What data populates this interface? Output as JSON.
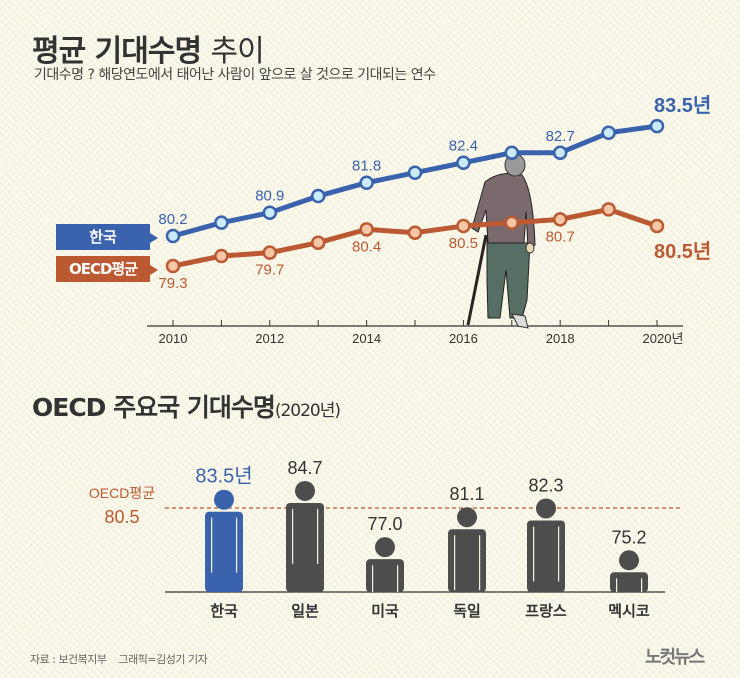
{
  "header": {
    "title_bold": "평균 기대수명",
    "title_light": "추이",
    "subtitle": "기대수명 ? 해당연도에서 태어난 사람이 앞으로 살 것으로 기대되는 연수"
  },
  "line_chart": {
    "legend": {
      "korea": "한국",
      "oecd": "OECD평균"
    },
    "end_labels": {
      "korea": "83.5년",
      "oecd": "80.5년"
    },
    "x_ticks": [
      "2010",
      "2012",
      "2014",
      "2016",
      "2018",
      "2020년"
    ]
  },
  "bar_chart": {
    "title_bold": "OECD 주요국 기대수명",
    "title_light": "(2020년)",
    "oecd_label": "OECD평균",
    "oecd_value": "80.5"
  },
  "footer": {
    "source": "자료 : 보건복지부    그래픽=김성기 기자",
    "logo": "노컷뉴스"
  },
  "colors": {
    "korea": "#3a62ad",
    "oecd": "#bb5a32",
    "korea_point_fill": "#c9ecf8",
    "oecd_point_fill": "#f6c7a6",
    "figure_gray": "#4d4d4d",
    "background": "#fbf9ec"
  },
  "chart_data": [
    {
      "type": "line",
      "title": "평균 기대수명 추이",
      "subtitle": "기대수명 ? 해당연도에서 태어난 사람이 앞으로 살 것으로 기대되는 연수",
      "x": [
        2010,
        2011,
        2012,
        2013,
        2014,
        2015,
        2016,
        2017,
        2018,
        2019,
        2020
      ],
      "series": [
        {
          "name": "한국",
          "values": [
            80.2,
            80.6,
            80.9,
            81.4,
            81.8,
            82.1,
            82.4,
            82.7,
            82.7,
            83.3,
            83.5
          ],
          "labeled": {
            "2010": "80.2",
            "2012": "80.9",
            "2014": "81.8",
            "2016": "82.4",
            "2018": "82.7",
            "2020": "83.5년"
          }
        },
        {
          "name": "OECD평균",
          "values": [
            79.3,
            79.6,
            79.7,
            80.0,
            80.4,
            80.3,
            80.5,
            80.6,
            80.7,
            81.0,
            80.5
          ],
          "labeled": {
            "2010": "79.3",
            "2012": "79.7",
            "2014": "80.4",
            "2016": "80.5",
            "2018": "80.7",
            "2020": "80.5년"
          }
        }
      ],
      "x_tick_labels": [
        "2010",
        "2012",
        "2014",
        "2016",
        "2018",
        "2020년"
      ],
      "xlabel": "",
      "ylabel": "",
      "grid": false,
      "legend_position": "left"
    },
    {
      "type": "bar",
      "title": "OECD 주요국 기대수명(2020년)",
      "categories": [
        "한국",
        "일본",
        "미국",
        "독일",
        "프랑스",
        "멕시코"
      ],
      "values": [
        83.5,
        84.7,
        77.0,
        81.1,
        82.3,
        75.2
      ],
      "value_labels": [
        "83.5년",
        "84.7",
        "77.0",
        "81.1",
        "82.3",
        "75.2"
      ],
      "reference_line": {
        "label": "OECD평균",
        "value": 80.5
      },
      "highlight": "한국"
    }
  ]
}
